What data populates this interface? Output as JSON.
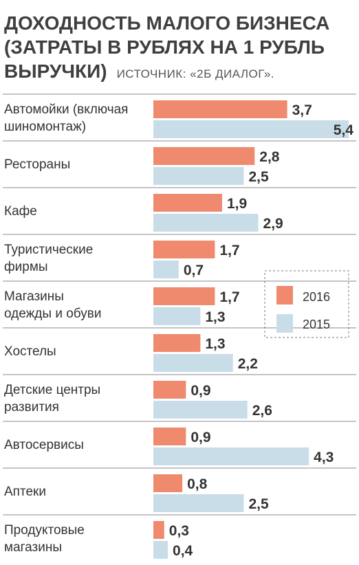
{
  "title": {
    "line1": "ДОХОДНОСТЬ МАЛОГО БИЗНЕСА",
    "line2": "(ЗАТРАТЫ В РУБЛЯХ НА 1 РУБЛЬ",
    "line3": "ВЫРУЧКИ)",
    "source": "ИСТОЧНИК: «2Б ДИАЛОГ»."
  },
  "colors": {
    "series_2016": "#ef8a6f",
    "series_2015": "#c9dde8",
    "text": "#333333",
    "divider": "#888888"
  },
  "chart_data": {
    "type": "bar",
    "orientation": "horizontal",
    "categories": [
      [
        "Автомойки (включая",
        "шиномонтаж)"
      ],
      [
        "Рестораны"
      ],
      [
        "Кафе"
      ],
      [
        "Туристические",
        "фирмы"
      ],
      [
        "Магазины",
        "одежды и обуви"
      ],
      [
        "Хостелы"
      ],
      [
        "Детские центры",
        "развития"
      ],
      [
        "Автосервисы"
      ],
      [
        "Аптеки"
      ],
      [
        "Продуктовые",
        "магазины"
      ]
    ],
    "series": [
      {
        "name": "2016",
        "values": [
          3.7,
          2.8,
          1.9,
          1.7,
          1.7,
          1.3,
          0.9,
          0.9,
          0.8,
          0.3
        ],
        "labels": [
          "3,7",
          "2,8",
          "1,9",
          "1,7",
          "1,7",
          "1,3",
          "0,9",
          "0,9",
          "0,8",
          "0,3"
        ]
      },
      {
        "name": "2015",
        "values": [
          5.4,
          2.5,
          2.9,
          0.7,
          1.3,
          2.2,
          2.6,
          4.3,
          2.5,
          0.4
        ],
        "labels": [
          "5,4",
          "2,5",
          "2,9",
          "0,7",
          "1,3",
          "2,2",
          "2,6",
          "4,3",
          "2,5",
          "0,4"
        ]
      }
    ],
    "xlim": [
      0,
      5.4
    ],
    "legend_position": "right"
  }
}
